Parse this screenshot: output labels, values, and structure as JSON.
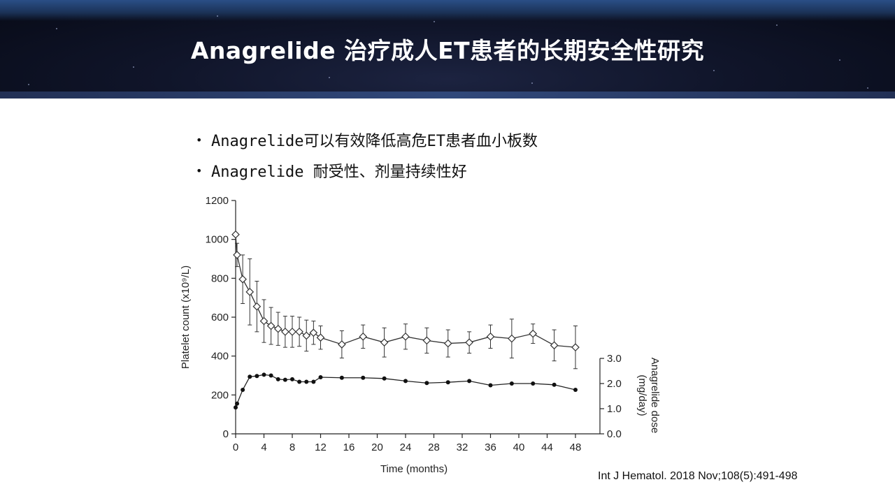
{
  "slide": {
    "title": "Anagrelide  治疗成人ET患者的长期安全性研究",
    "bullets": [
      "Anagrelide可以有效降低高危ET患者血小板数",
      "Anagrelide 耐受性、剂量持续性好"
    ],
    "citation": "Int J Hematol. 2018 Nov;108(5):491-498"
  },
  "chart_data": {
    "type": "line",
    "xlabel": "Time (months)",
    "ylabel": "Platelet count (x10⁹/L)",
    "y2label": "Anagrelide dose (mg/day)",
    "xlim": [
      0,
      48
    ],
    "ylim": [
      0,
      1200
    ],
    "y2lim": [
      0,
      3.0
    ],
    "xticks": [
      "0",
      "4",
      "8",
      "12",
      "16",
      "20",
      "24",
      "28",
      "32",
      "36",
      "40",
      "44",
      "48"
    ],
    "yticks": [
      "0",
      "200",
      "400",
      "600",
      "800",
      "1000",
      "1200"
    ],
    "y2ticks": [
      "0.0",
      "1.0",
      "2.0",
      "3.0"
    ],
    "grid": false,
    "series": [
      {
        "axis": "left",
        "marker": "open-diamond",
        "x": [
          0,
          0.2,
          1,
          2,
          3,
          4,
          5,
          6,
          7,
          8,
          9,
          10,
          11,
          12,
          15,
          18,
          21,
          24,
          27,
          30,
          33,
          36,
          39,
          42,
          45,
          48
        ],
        "y": [
          1025,
          920,
          795,
          730,
          655,
          580,
          555,
          540,
          525,
          525,
          525,
          505,
          520,
          495,
          460,
          500,
          470,
          500,
          480,
          465,
          470,
          500,
          490,
          515,
          455,
          445
        ],
        "err": [
          0,
          60,
          125,
          170,
          130,
          110,
          95,
          85,
          80,
          80,
          75,
          80,
          60,
          60,
          70,
          60,
          75,
          65,
          65,
          70,
          55,
          60,
          100,
          50,
          80,
          110
        ]
      },
      {
        "axis": "right",
        "marker": "filled-circle",
        "x": [
          0,
          0.2,
          1,
          2,
          3,
          4,
          5,
          6,
          7,
          8,
          9,
          10,
          11,
          12,
          15,
          18,
          21,
          24,
          27,
          30,
          33,
          36,
          39,
          42,
          45,
          48
        ],
        "y": [
          1.05,
          1.2,
          1.75,
          2.27,
          2.3,
          2.35,
          2.32,
          2.17,
          2.15,
          2.17,
          2.07,
          2.07,
          2.07,
          2.25,
          2.23,
          2.23,
          2.2,
          2.1,
          2.02,
          2.05,
          2.1,
          1.93,
          2.0,
          2.0,
          1.95,
          1.75
        ]
      }
    ]
  }
}
